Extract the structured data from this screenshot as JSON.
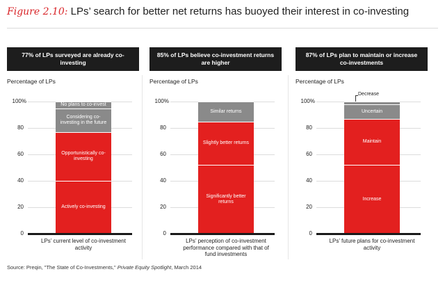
{
  "figure": {
    "label": "Figure 2.10:",
    "title": "LPs’ search for better net returns has buoyed their interest in co-investing"
  },
  "source": {
    "prefix": "Source: Preqin, \"The State of Co-Investments,\"",
    "publication": "Private Equity Spotlight",
    "suffix": ", March 2014"
  },
  "colors": {
    "accent_red": "#e3201f",
    "gray": "#8a8a8a",
    "header_bg": "#1d1d1d"
  },
  "chart_data": [
    {
      "type": "bar",
      "stacked": true,
      "header": "77% of LPs surveyed are already co-investing",
      "ylabel": "Percentage of LPs",
      "yticks": [
        "0",
        "20",
        "40",
        "60",
        "80",
        "100%"
      ],
      "ylim": [
        0,
        100
      ],
      "xlabel": "LPs’ current level of co-investment activity",
      "segments": [
        {
          "label": "Actively co-investing",
          "value": 40,
          "color": "red"
        },
        {
          "label": "Opportunistically co-investing",
          "value": 37,
          "color": "red"
        },
        {
          "label": "Considering co-investing in the future",
          "value": 18,
          "color": "gray"
        },
        {
          "label": "No plans to co-invest",
          "value": 5,
          "color": "gray"
        }
      ]
    },
    {
      "type": "bar",
      "stacked": true,
      "header": "85% of LPs believe co-investment returns are higher",
      "ylabel": "Percentage of LPs",
      "yticks": [
        "0",
        "20",
        "40",
        "60",
        "80",
        "100%"
      ],
      "ylim": [
        0,
        100
      ],
      "xlabel": "LPs’ perception of co-investment performance compared with that of fund investments",
      "segments": [
        {
          "label": "Significantly better returns",
          "value": 52,
          "color": "red"
        },
        {
          "label": "Slightly better returns",
          "value": 33,
          "color": "red"
        },
        {
          "label": "Similar returns",
          "value": 15,
          "color": "gray"
        }
      ]
    },
    {
      "type": "bar",
      "stacked": true,
      "header": "87% of LPs plan to maintain or increase co-investments",
      "ylabel": "Percentage of LPs",
      "yticks": [
        "0",
        "20",
        "40",
        "60",
        "80",
        "100%"
      ],
      "ylim": [
        0,
        100
      ],
      "xlabel": "LPs’ future plans for co-investment activity",
      "segments": [
        {
          "label": "Increase",
          "value": 52,
          "color": "red"
        },
        {
          "label": "Maintain",
          "value": 35,
          "color": "red"
        },
        {
          "label": "Uncertain",
          "value": 11,
          "color": "gray"
        },
        {
          "label": "Decrease",
          "value": 2,
          "color": "gray",
          "callout": true
        }
      ]
    }
  ]
}
